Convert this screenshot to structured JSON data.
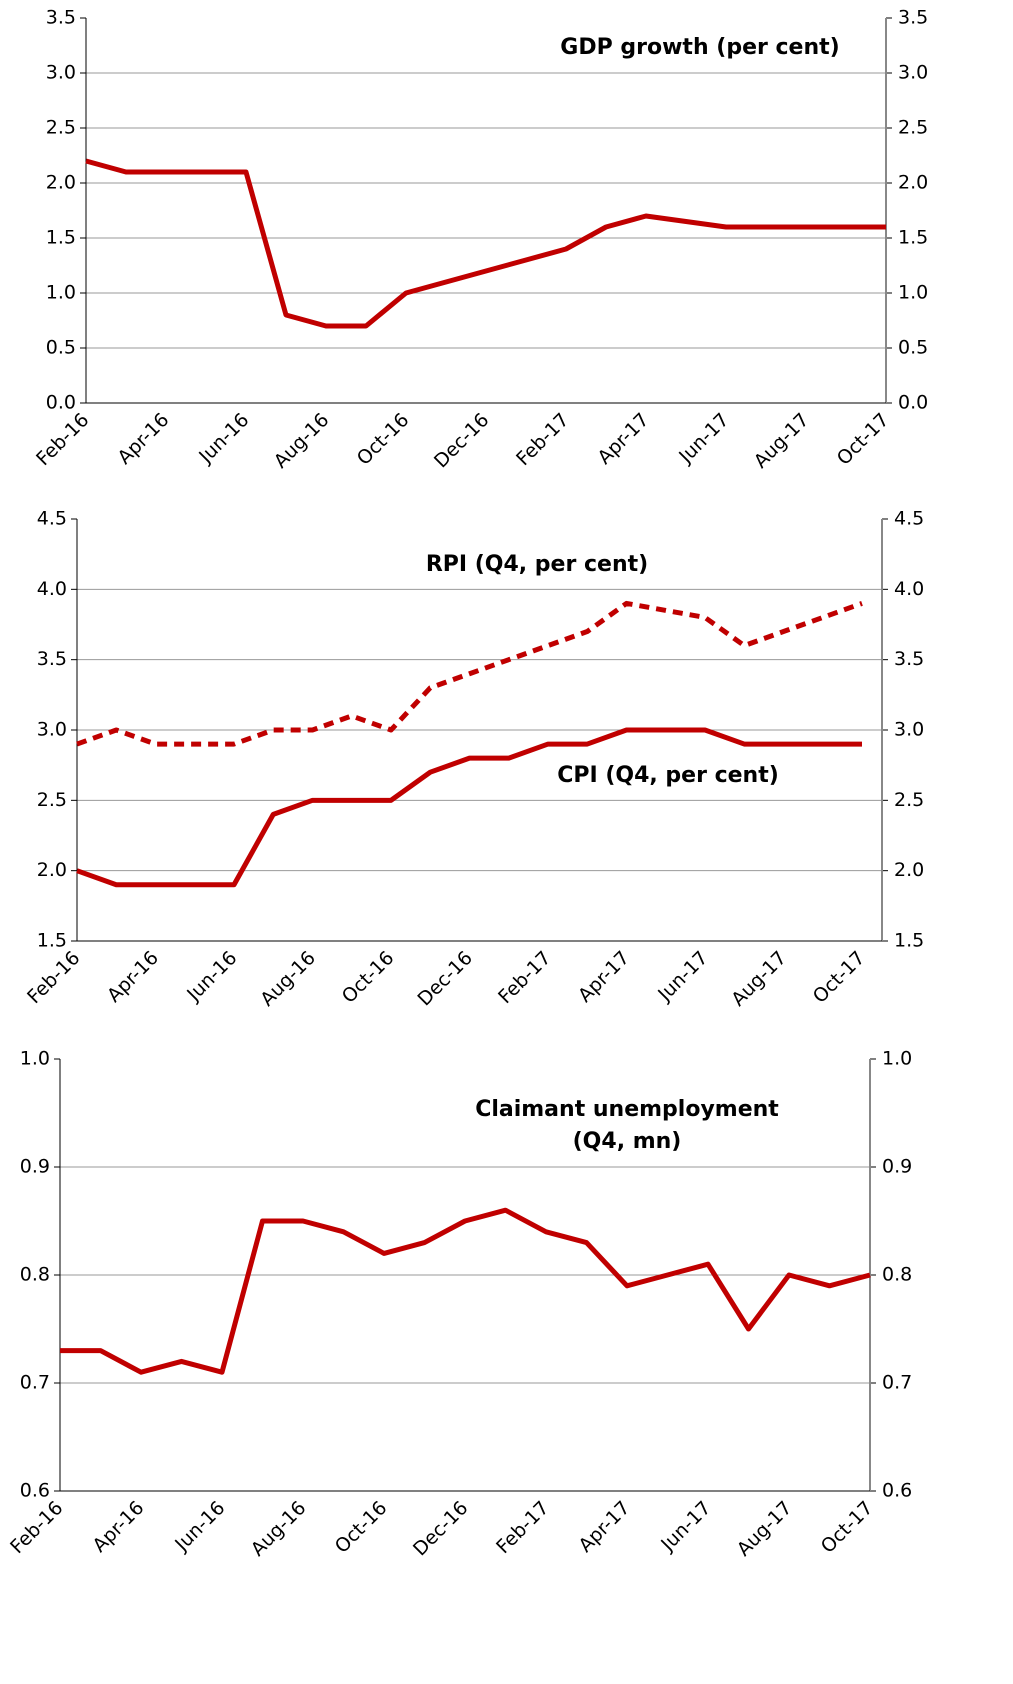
{
  "chart_data": [
    {
      "type": "line",
      "title": "GDP growth (per cent)",
      "categories": [
        "Feb-16",
        null,
        "Apr-16",
        null,
        "Jun-16",
        null,
        "Aug-16",
        null,
        "Oct-16",
        null,
        "Dec-16",
        null,
        "Feb-17",
        null,
        "Apr-17",
        null,
        "Jun-17",
        null,
        "Aug-17",
        null,
        "Oct-17"
      ],
      "values": [
        2.2,
        2.1,
        2.1,
        2.1,
        2.1,
        0.8,
        0.7,
        0.7,
        1.0,
        1.1,
        1.2,
        1.3,
        1.4,
        1.6,
        1.7,
        1.65,
        1.6,
        1.6,
        1.6,
        1.6,
        1.6
      ],
      "color": "#c00000",
      "ylim": [
        0,
        3.5
      ],
      "yticks": [
        {
          "value": 0,
          "label": "0.0"
        },
        0.5,
        {
          "value": 1,
          "label": "1.0"
        },
        1.5,
        {
          "value": 2,
          "label": "2.0"
        },
        2.5,
        {
          "value": 3,
          "label": "3.0"
        },
        3.5
      ],
      "grid": true
    },
    {
      "type": "line",
      "categories": [
        "Feb-16",
        null,
        "Apr-16",
        null,
        "Jun-16",
        null,
        "Aug-16",
        null,
        "Oct-16",
        null,
        "Dec-16",
        null,
        "Feb-17",
        null,
        "Apr-17",
        null,
        "Jun-17",
        null,
        "Aug-17",
        null,
        "Oct-17"
      ],
      "series": [
        {
          "name": "RPI (Q4, per cent)",
          "color": "#c00000",
          "line_style": "dashed",
          "values": [
            2.9,
            3.0,
            2.9,
            2.9,
            2.9,
            3.0,
            3.0,
            3.1,
            3.0,
            3.3,
            3.4,
            3.5,
            3.6,
            3.7,
            3.9,
            3.85,
            3.8,
            3.6,
            3.7,
            3.8,
            3.9
          ]
        },
        {
          "name": "CPI (Q4, per cent)",
          "color": "#c00000",
          "line_style": "solid",
          "values": [
            2.0,
            1.9,
            1.9,
            1.9,
            1.9,
            2.4,
            2.5,
            2.5,
            2.5,
            2.7,
            2.8,
            2.8,
            2.9,
            2.9,
            3.0,
            3.0,
            3.0,
            2.9,
            2.9,
            2.9,
            2.9
          ]
        }
      ],
      "ylim": [
        1.5,
        4.5
      ],
      "yticks": [
        1.5,
        {
          "value": 2,
          "label": "2.0"
        },
        2.5,
        {
          "value": 3,
          "label": "3.0"
        },
        3.5,
        {
          "value": 4,
          "label": "4.0"
        },
        4.5
      ],
      "grid": true
    },
    {
      "type": "line",
      "title": [
        "Claimant unemployment",
        "(Q4, mn)"
      ],
      "categories": [
        "Feb-16",
        null,
        "Apr-16",
        null,
        "Jun-16",
        null,
        "Aug-16",
        null,
        "Oct-16",
        null,
        "Dec-16",
        null,
        "Feb-17",
        null,
        "Apr-17",
        null,
        "Jun-17",
        null,
        "Aug-17",
        null,
        "Oct-17"
      ],
      "values": [
        0.73,
        0.73,
        0.71,
        0.72,
        0.71,
        0.85,
        0.85,
        0.84,
        0.82,
        0.83,
        0.85,
        0.86,
        0.84,
        0.83,
        0.79,
        0.8,
        0.81,
        0.75,
        0.8,
        0.79,
        0.8
      ],
      "color": "#c00000",
      "ylim": [
        0.6,
        1.0
      ],
      "yticks": [
        0.6,
        0.7,
        0.8,
        0.9,
        {
          "value": 1,
          "label": "1.0"
        }
      ],
      "grid": true
    }
  ]
}
